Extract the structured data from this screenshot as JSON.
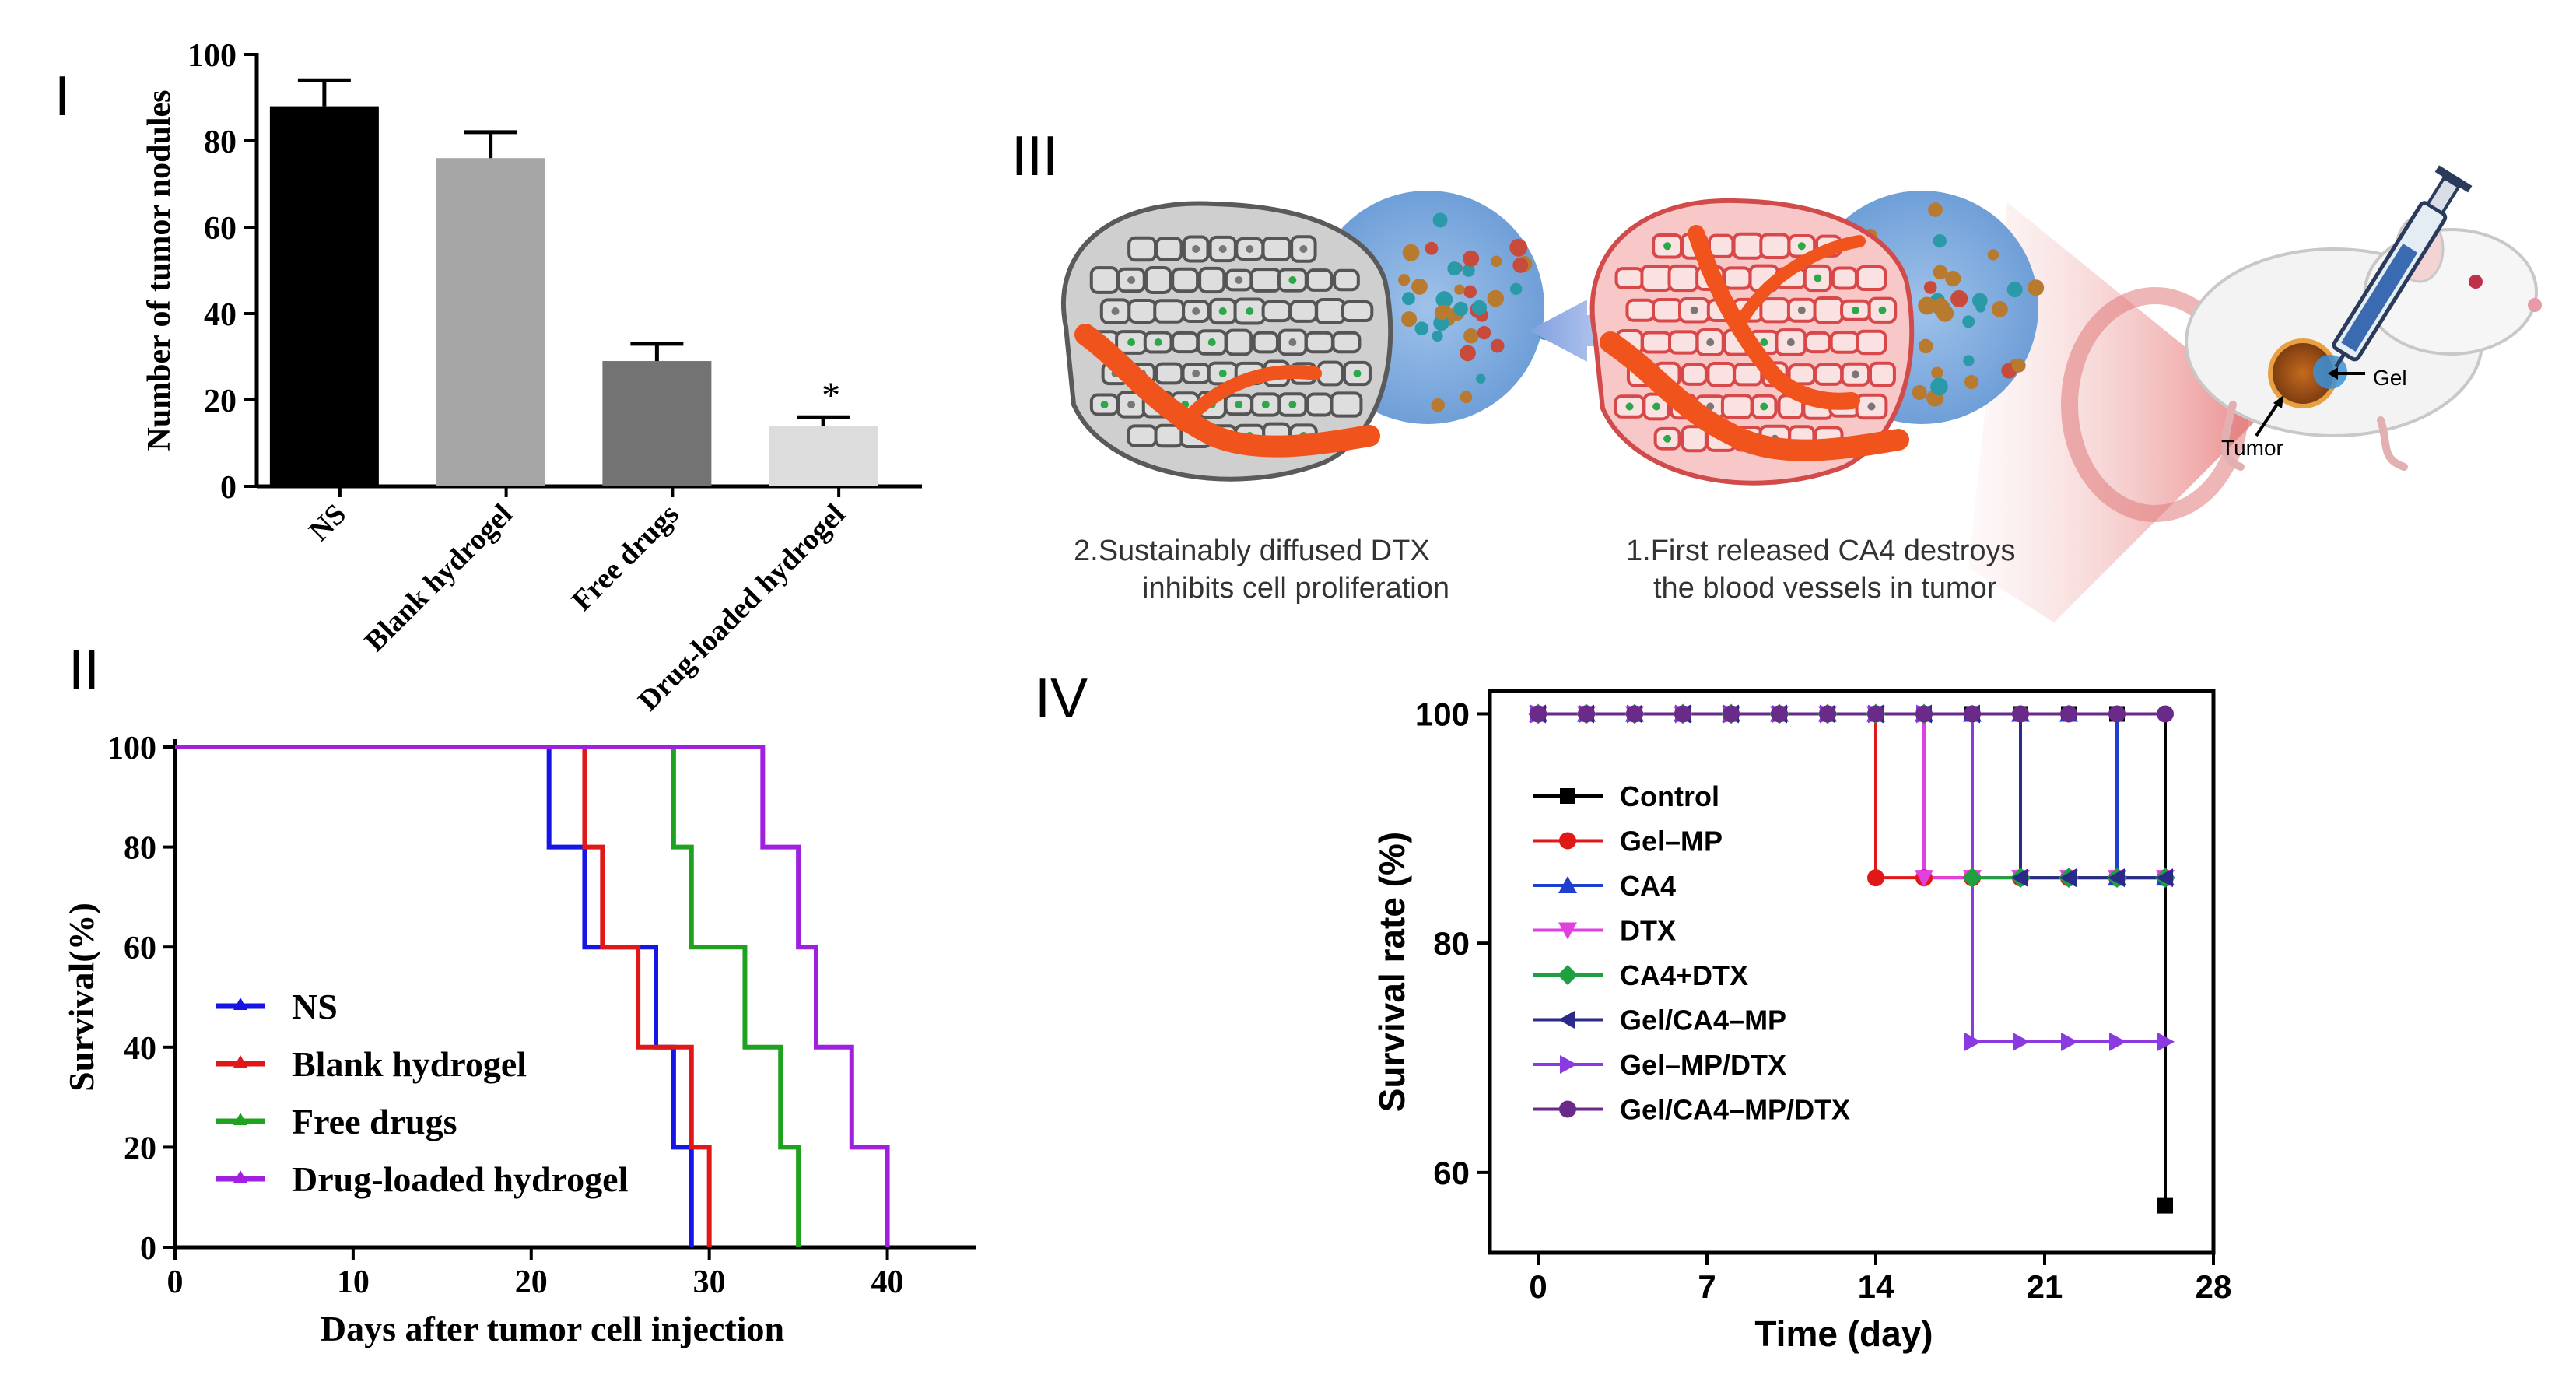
{
  "panel_labels": {
    "p1": "I",
    "p2": "II",
    "p3": "III",
    "p4": "IV"
  },
  "chart_data": [
    {
      "id": "panel-I",
      "type": "bar",
      "title": "",
      "xlabel": "",
      "ylabel": "Number of tumor nodules",
      "categories": [
        "NS",
        "Blank hydrogel",
        "Free drugs",
        "Drug-loaded hydrogel"
      ],
      "values": [
        88,
        76,
        29,
        14
      ],
      "errors": [
        6,
        6,
        4,
        2
      ],
      "annotations": [
        "",
        "",
        "",
        "*"
      ],
      "colors": [
        "#000000",
        "#a6a6a6",
        "#737373",
        "#dcdcdc"
      ],
      "ylim": [
        0,
        100
      ],
      "yticks": [
        0,
        20,
        40,
        60,
        80,
        100
      ]
    },
    {
      "id": "panel-II",
      "type": "line",
      "step": true,
      "xlabel": "Days after tumor cell injection",
      "ylabel": "Survival(%)",
      "xlim": [
        0,
        45
      ],
      "ylim": [
        0,
        100
      ],
      "xticks": [
        0,
        10,
        20,
        30,
        40
      ],
      "yticks": [
        0,
        20,
        40,
        60,
        80,
        100
      ],
      "series": [
        {
          "name": "NS",
          "color": "#1515e6",
          "x": [
            0,
            21,
            21,
            23,
            23,
            27,
            27,
            28,
            28,
            29,
            29
          ],
          "y": [
            100,
            100,
            80,
            80,
            60,
            60,
            40,
            40,
            20,
            20,
            0
          ]
        },
        {
          "name": "Blank hydrogel",
          "color": "#e01818",
          "x": [
            0,
            23,
            23,
            24,
            24,
            26,
            26,
            29,
            29,
            30,
            30
          ],
          "y": [
            100,
            100,
            80,
            80,
            60,
            60,
            40,
            40,
            20,
            20,
            0
          ]
        },
        {
          "name": "Free drugs",
          "color": "#1fa21f",
          "x": [
            0,
            28,
            28,
            29,
            29,
            32,
            32,
            34,
            34,
            35,
            35
          ],
          "y": [
            100,
            100,
            80,
            80,
            60,
            60,
            40,
            40,
            20,
            20,
            0
          ]
        },
        {
          "name": "Drug-loaded hydrogel",
          "color": "#a020e0",
          "x": [
            0,
            33,
            33,
            35,
            35,
            36,
            36,
            38,
            38,
            40,
            40
          ],
          "y": [
            100,
            100,
            80,
            80,
            60,
            60,
            40,
            40,
            20,
            20,
            0
          ]
        }
      ],
      "legend": "center-left"
    },
    {
      "id": "panel-IV",
      "type": "line",
      "step": true,
      "xlabel": "Time (day)",
      "ylabel": "Survival rate (%)",
      "xlim": [
        -2,
        28
      ],
      "ylim": [
        53,
        102
      ],
      "xticks": [
        0,
        7,
        14,
        21,
        28
      ],
      "yticks": [
        60,
        80,
        100
      ],
      "marker_days": [
        0,
        2,
        4,
        6,
        8,
        10,
        12,
        14,
        16,
        18,
        20,
        22,
        24,
        26
      ],
      "series": [
        {
          "name": "Control",
          "color": "#000000",
          "marker": "square",
          "x": [
            0,
            26,
            26
          ],
          "y": [
            100,
            100,
            57.1
          ]
        },
        {
          "name": "Gel–MP",
          "color": "#e01818",
          "marker": "circle",
          "x": [
            0,
            14,
            14,
            26
          ],
          "y": [
            100,
            100,
            85.7,
            85.7
          ]
        },
        {
          "name": "CA4",
          "color": "#1f3fd0",
          "marker": "triangle-up",
          "x": [
            0,
            24,
            24,
            26
          ],
          "y": [
            100,
            100,
            85.7,
            85.7
          ]
        },
        {
          "name": "DTX",
          "color": "#e040e0",
          "marker": "triangle-down",
          "x": [
            0,
            16,
            16,
            26
          ],
          "y": [
            100,
            100,
            85.7,
            85.7
          ]
        },
        {
          "name": "CA4+DTX",
          "color": "#1fa040",
          "marker": "diamond",
          "x": [
            0,
            18,
            18,
            26
          ],
          "y": [
            100,
            100,
            85.7,
            85.7
          ]
        },
        {
          "name": "Gel/CA4–MP",
          "color": "#2a2a8a",
          "marker": "triangle-left",
          "x": [
            0,
            20,
            20,
            26
          ],
          "y": [
            100,
            100,
            85.7,
            85.7
          ]
        },
        {
          "name": "Gel–MP/DTX",
          "color": "#8a3ae0",
          "marker": "triangle-right",
          "x": [
            0,
            18,
            18,
            26
          ],
          "y": [
            100,
            100,
            71.4,
            71.4
          ]
        },
        {
          "name": "Gel/CA4–MP/DTX",
          "color": "#6a2a8a",
          "marker": "circle",
          "x": [
            0,
            26
          ],
          "y": [
            100,
            100
          ]
        }
      ],
      "legend": "left-inside"
    }
  ],
  "schematic": {
    "caption_left_line1": "2.Sustainably diffused DTX",
    "caption_left_line2": "inhibits cell proliferation",
    "caption_right_line1": "1.First released CA4 destroys",
    "caption_right_line2": "the blood vessels in tumor",
    "label_gel": "Gel",
    "label_tumor": "Tumor"
  }
}
